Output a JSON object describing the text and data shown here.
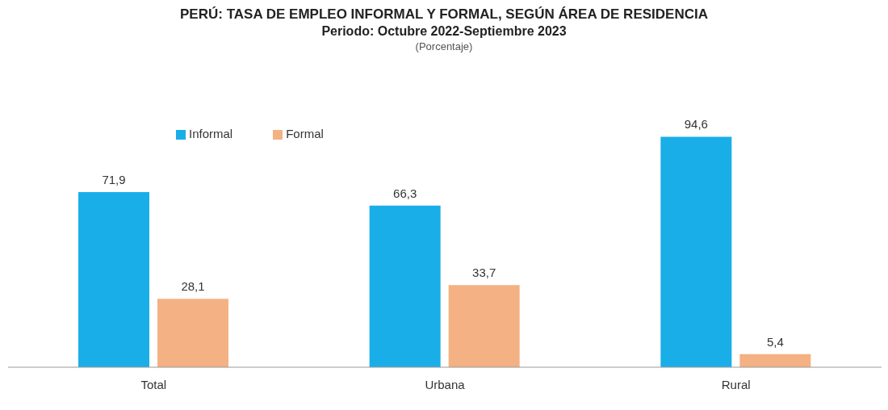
{
  "chart_data": {
    "type": "bar",
    "title": "PERÚ: TASA DE EMPLEO INFORMAL Y FORMAL, SEGÚN ÁREA DE RESIDENCIA",
    "subtitle": "Periodo: Octubre 2022-Septiembre 2023",
    "annotations": [
      "(Porcentaje)"
    ],
    "categories": [
      "Total",
      "Urbana",
      "Rural"
    ],
    "series": [
      {
        "name": "Informal",
        "color": "#1aaee8",
        "values": [
          71.9,
          66.3,
          94.6
        ],
        "value_labels": [
          "71,9",
          "66,3",
          "94,6"
        ]
      },
      {
        "name": "Formal",
        "color": "#f4b183",
        "values": [
          28.1,
          33.7,
          5.4
        ],
        "value_labels": [
          "28,1",
          "33,7",
          "5,4"
        ]
      }
    ],
    "legend": "top left",
    "grid": false
  }
}
